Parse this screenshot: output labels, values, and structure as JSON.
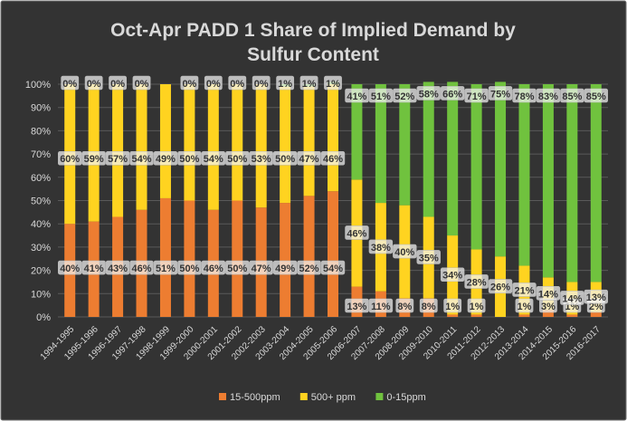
{
  "colors": {
    "background": "#333333",
    "frame": "#6f6f6f",
    "grid": "#5a5a5a",
    "text": "#d9d9d9",
    "label_box": "#f2f2f2",
    "label_text": "#333333",
    "label_border": "#bdbdbd"
  },
  "chart_data": {
    "type": "bar",
    "stacked": true,
    "title_line1": "Oct-Apr PADD 1 Share of Implied Demand by",
    "title_line2": "Sulfur Content",
    "xlabel": "",
    "ylabel": "",
    "ylim": [
      0,
      100
    ],
    "y_ticks": [
      "0%",
      "10%",
      "20%",
      "30%",
      "40%",
      "50%",
      "60%",
      "70%",
      "80%",
      "90%",
      "100%"
    ],
    "legend_position": "bottom",
    "grid": true,
    "categories": [
      "1994-1995",
      "1995-1996",
      "1996-1997",
      "1997-1998",
      "1998-1999",
      "1999-2000",
      "2000-2001",
      "2001-2002",
      "2002-2003",
      "2003-2004",
      "2004-2005",
      "2005-2006",
      "2006-2007",
      "2007-2008",
      "2008-2009",
      "2009-2010",
      "2010-2011",
      "2011-2012",
      "2012-2013",
      "2013-2014",
      "2014-2015",
      "2015-2016",
      "2016-2017"
    ],
    "series": [
      {
        "name": "15-500ppm",
        "color": "#ed7d31",
        "values": [
          40,
          41,
          43,
          46,
          51,
          50,
          46,
          50,
          47,
          49,
          52,
          54,
          13,
          11,
          8,
          8,
          1,
          1,
          0,
          1,
          3,
          1,
          2
        ],
        "labels": [
          "40%",
          "41%",
          "43%",
          "46%",
          "51%",
          "50%",
          "46%",
          "50%",
          "47%",
          "49%",
          "52%",
          "54%",
          "13%",
          "11%",
          "8%",
          "8%",
          "1%",
          "1%",
          "",
          "1%",
          "3%",
          "1%",
          "2%"
        ]
      },
      {
        "name": "500+ ppm",
        "color": "#ffd320",
        "values": [
          60,
          59,
          57,
          54,
          49,
          50,
          54,
          50,
          53,
          50,
          47,
          46,
          46,
          38,
          40,
          35,
          34,
          28,
          26,
          21,
          14,
          14,
          13
        ],
        "labels": [
          "60%",
          "59%",
          "57%",
          "54%",
          "49%",
          "50%",
          "54%",
          "50%",
          "53%",
          "50%",
          "47%",
          "46%",
          "46%",
          "38%",
          "40%",
          "35%",
          "34%",
          "28%",
          "26%",
          "21%",
          "14%",
          "14%",
          "13%"
        ]
      },
      {
        "name": "0-15ppm",
        "color": "#70c23e",
        "values": [
          0,
          0,
          0,
          0,
          0,
          0,
          0,
          0,
          0,
          1,
          1,
          1,
          41,
          51,
          52,
          58,
          66,
          71,
          75,
          78,
          83,
          85,
          85
        ],
        "labels": [
          "0%",
          "0%",
          "0%",
          "0%",
          "",
          "0%",
          "0%",
          "0%",
          "0%",
          "1%",
          "1%",
          "1%",
          "41%",
          "51%",
          "52%",
          "58%",
          "66%",
          "71%",
          "75%",
          "78%",
          "83%",
          "85%",
          "85%"
        ]
      }
    ]
  }
}
